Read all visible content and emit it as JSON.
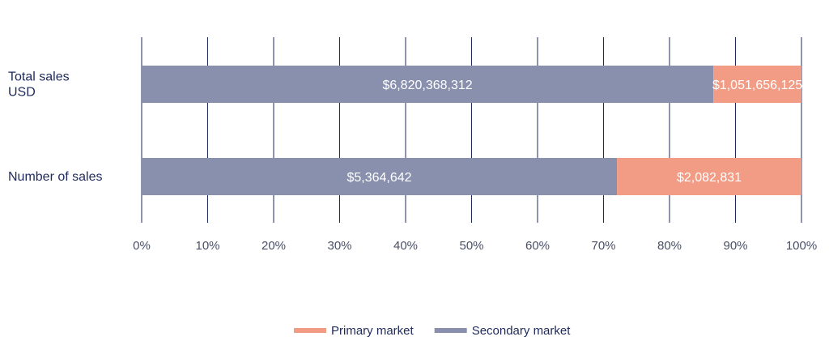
{
  "chart_data": {
    "type": "bar",
    "orientation": "horizontal",
    "stacked": "percent",
    "categories": [
      "Total sales\nUSD",
      "Number of sales"
    ],
    "series": [
      {
        "name": "Secondary market",
        "values": [
          6820368312,
          5364642
        ],
        "labels": [
          "$6,820,368,312",
          "$5,364,642"
        ]
      },
      {
        "name": "Primary market",
        "values": [
          1051656125,
          2082831
        ],
        "labels": [
          "$1,051,656,125",
          "$2,082,831"
        ]
      }
    ],
    "xticks": [
      "0%",
      "10%",
      "20%",
      "30%",
      "40%",
      "50%",
      "60%",
      "70%",
      "80%",
      "90%",
      "100%"
    ],
    "xlim": [
      0,
      100
    ],
    "grid": true,
    "legend_position": "bottom-center",
    "legend": [
      {
        "name": "Primary market",
        "color": "#f29c85"
      },
      {
        "name": "Secondary market",
        "color": "#8890ae"
      }
    ],
    "colors": {
      "Primary market": "#f29c85",
      "Secondary market": "#8890ae"
    }
  }
}
